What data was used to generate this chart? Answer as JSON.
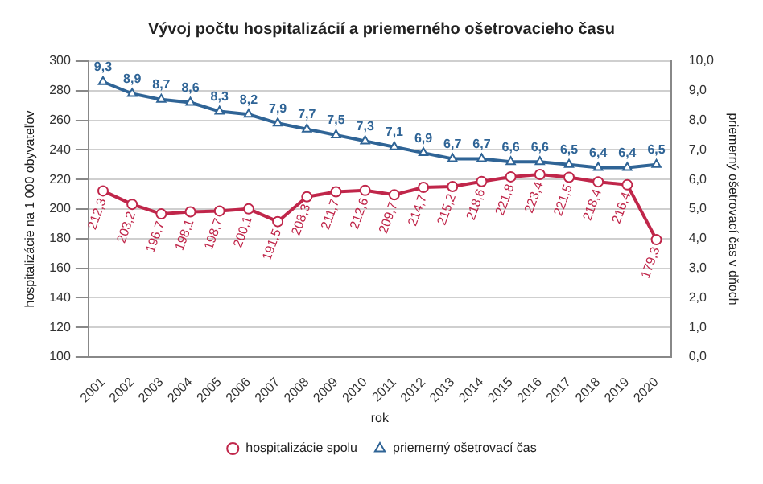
{
  "chart_data": {
    "type": "line",
    "title": "Vývoj počtu hospitalizácií a priemerného ošetrovacieho času",
    "xlabel": "rok",
    "ylabel": "hospitalizácie na 1 000 obyvateľov",
    "y2label": "priemerný ošetrovací čas v dňoch",
    "categories": [
      "2001",
      "2002",
      "2003",
      "2004",
      "2005",
      "2006",
      "2007",
      "2008",
      "2009",
      "2010",
      "2011",
      "2012",
      "2013",
      "2014",
      "2015",
      "2016",
      "2017",
      "2018",
      "2019",
      "2020"
    ],
    "series": [
      {
        "name": "hospitalizácie spolu",
        "color": "#c0264a",
        "marker": "circle",
        "values": [
          212.3,
          203.2,
          196.7,
          198.1,
          198.7,
          200.1,
          191.5,
          208.3,
          211.7,
          212.6,
          209.7,
          214.7,
          215.2,
          218.6,
          221.8,
          223.4,
          221.5,
          218.4,
          216.4,
          179.3
        ],
        "value_labels": [
          "212,3",
          "203,2",
          "196,7",
          "198,1",
          "198,7",
          "200,1",
          "191,5",
          "208,3",
          "211,7",
          "212,6",
          "209,7",
          "214,7",
          "215,2",
          "218,6",
          "221,8",
          "223,4",
          "221,5",
          "218,4",
          "216,4",
          "179,3"
        ]
      },
      {
        "name": "priemerný ošetrovací čas",
        "color": "#2f6496",
        "marker": "triangle",
        "axis": "y2",
        "values": [
          9.3,
          8.9,
          8.7,
          8.6,
          8.3,
          8.2,
          7.9,
          7.7,
          7.5,
          7.3,
          7.1,
          6.9,
          6.7,
          6.7,
          6.6,
          6.6,
          6.5,
          6.4,
          6.4,
          6.5
        ],
        "value_labels": [
          "9,3",
          "8,9",
          "8,7",
          "8,6",
          "8,3",
          "8,2",
          "7,9",
          "7,7",
          "7,5",
          "7,3",
          "7,1",
          "6,9",
          "6,7",
          "6,7",
          "6,6",
          "6,6",
          "6,5",
          "6,4",
          "6,4",
          "6,5"
        ]
      }
    ],
    "ylim": [
      100,
      300
    ],
    "yticks": [
      100,
      120,
      140,
      160,
      180,
      200,
      220,
      240,
      260,
      280,
      300
    ],
    "y2lim": [
      0,
      10
    ],
    "y2ticks": [
      {
        "value": 0,
        "label": "0,0"
      },
      {
        "value": 1,
        "label": "1,0"
      },
      {
        "value": 2,
        "label": "2,0"
      },
      {
        "value": 3,
        "label": "3,0"
      },
      {
        "value": 4,
        "label": "4,0"
      },
      {
        "value": 5,
        "label": "5,0"
      },
      {
        "value": 6,
        "label": "6,0"
      },
      {
        "value": 7,
        "label": "7,0"
      },
      {
        "value": 8,
        "label": "8,0"
      },
      {
        "value": 9,
        "label": "9,0"
      },
      {
        "value": 10,
        "label": "10,0"
      }
    ],
    "grid": "y",
    "legend": "bottom"
  }
}
